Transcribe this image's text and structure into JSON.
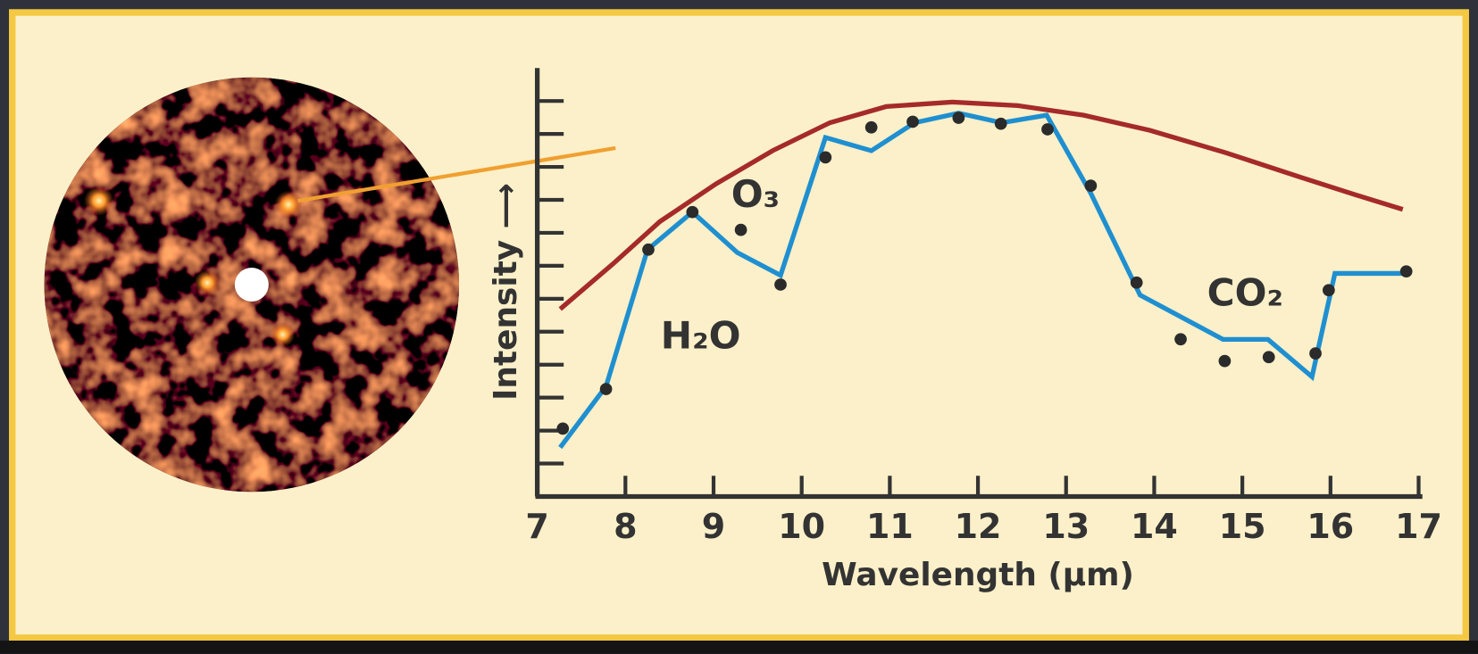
{
  "chart_data": {
    "type": "line",
    "x_label": "Wavelength (μm)",
    "y_label": "Intensity ⟶",
    "annotations": [
      {
        "text": "H₂O",
        "x": 8.4,
        "y": 4.8
      },
      {
        "text": "O₃",
        "x": 9.2,
        "y": 9.1
      },
      {
        "text": "CO₂",
        "x": 14.6,
        "y": 6.1
      }
    ],
    "xlim": [
      7,
      17
    ],
    "xticks": [
      7,
      8,
      9,
      10,
      11,
      12,
      13,
      14,
      15,
      16,
      17
    ],
    "ylim": [
      0,
      13
    ],
    "yticks": [
      1,
      2,
      3,
      4,
      5,
      6,
      7,
      8,
      9,
      10,
      11,
      12
    ],
    "series": [
      {
        "style": "line",
        "color": "#a52a2a",
        "x": [
          7.26,
          7.86,
          8.39,
          9.03,
          9.67,
          10.32,
          10.96,
          11.71,
          12.45,
          13.2,
          13.95,
          14.81,
          15.66,
          16.3,
          16.82
        ],
        "values": [
          5.69,
          7.06,
          8.34,
          9.49,
          10.49,
          11.34,
          11.83,
          11.97,
          11.86,
          11.57,
          11.11,
          10.43,
          9.69,
          9.14,
          8.71
        ]
      },
      {
        "style": "line",
        "color": "#1f8fd0",
        "x": [
          7.26,
          7.78,
          8.25,
          8.76,
          9.27,
          9.76,
          10.27,
          10.79,
          11.28,
          11.78,
          12.27,
          12.78,
          13.28,
          13.84,
          14.78,
          15.29,
          15.79,
          16.05,
          16.86
        ],
        "values": [
          1.49,
          3.34,
          7.49,
          8.63,
          7.4,
          6.71,
          10.89,
          10.49,
          11.34,
          11.63,
          11.34,
          11.57,
          9.2,
          6.11,
          4.77,
          4.77,
          3.63,
          6.77,
          6.77
        ]
      },
      {
        "style": "markers",
        "color": "#2b2b2b",
        "x": [
          7.29,
          7.78,
          8.26,
          8.76,
          9.31,
          9.76,
          10.27,
          10.79,
          11.26,
          11.78,
          12.26,
          12.79,
          13.28,
          13.8,
          14.3,
          14.8,
          15.3,
          15.83,
          15.98,
          16.86
        ],
        "values": [
          2.06,
          3.26,
          7.49,
          8.63,
          8.09,
          6.43,
          10.29,
          11.2,
          11.37,
          11.49,
          11.31,
          11.14,
          9.43,
          6.49,
          4.77,
          4.11,
          4.23,
          4.34,
          6.26,
          6.83
        ]
      }
    ]
  }
}
